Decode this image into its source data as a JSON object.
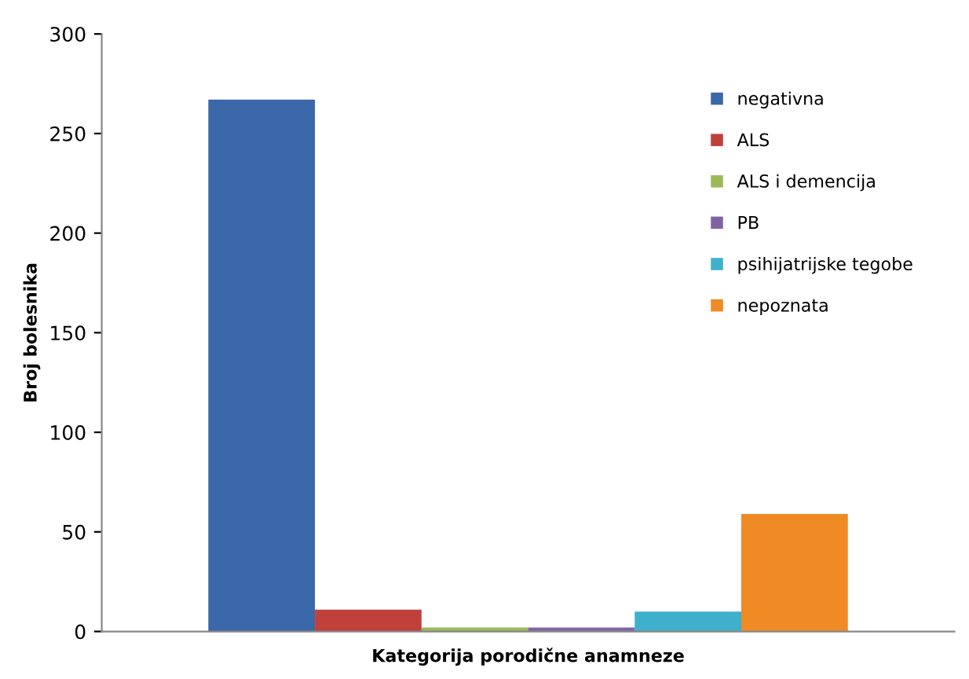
{
  "chart_data": {
    "type": "bar",
    "xlabel": "Kategorija porodične anamneze",
    "ylabel": "Broj bolesnika",
    "categories": [
      null
    ],
    "series": [
      {
        "name": "negativna",
        "color": "#3a68a8",
        "values": [
          267
        ]
      },
      {
        "name": "ALS",
        "color": "#c0403c",
        "values": [
          11
        ]
      },
      {
        "name": "ALS i demencija",
        "color": "#9bbb59",
        "values": [
          2
        ]
      },
      {
        "name": "PB",
        "color": "#8064a2",
        "values": [
          2
        ]
      },
      {
        "name": "psihijatrijske tegobe",
        "color": "#3fb0cc",
        "values": [
          10
        ]
      },
      {
        "name": "nepoznata",
        "color": "#f08a24",
        "values": [
          59
        ]
      }
    ],
    "ylim": [
      0,
      300
    ],
    "yticks": [
      0,
      50,
      100,
      150,
      200,
      250,
      300
    ],
    "grid": false,
    "legend": "top right"
  }
}
